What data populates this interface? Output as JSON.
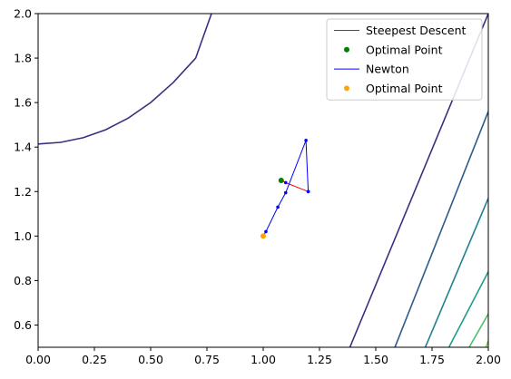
{
  "chart_data": {
    "type": "line",
    "xlim": [
      0.0,
      2.0
    ],
    "ylim": [
      0.5,
      2.0
    ],
    "x_ticks": [
      "0.00",
      "0.25",
      "0.50",
      "0.75",
      "1.00",
      "1.25",
      "1.50",
      "1.75",
      "2.00"
    ],
    "y_ticks": [
      "0.6",
      "0.8",
      "1.0",
      "1.2",
      "1.4",
      "1.6",
      "1.8",
      "2.0"
    ],
    "grid": false,
    "legend_position": "top-right",
    "contour_levels": [
      {
        "color": "#3b2f7f",
        "points": [
          [
            0.0,
            1.414
          ],
          [
            0.1,
            1.421
          ],
          [
            0.2,
            1.442
          ],
          [
            0.3,
            1.478
          ],
          [
            0.4,
            1.53
          ],
          [
            0.5,
            1.6
          ],
          [
            0.6,
            1.69
          ],
          [
            0.7,
            1.8
          ],
          [
            0.77,
            2.0
          ]
        ]
      },
      {
        "color": "#3b2f7f",
        "points": [
          [
            1.385,
            0.5
          ],
          [
            2.0,
            2.0
          ]
        ]
      },
      {
        "color": "#2e5a8c",
        "points": [
          [
            1.585,
            0.5
          ],
          [
            2.0,
            1.56
          ]
        ]
      },
      {
        "color": "#22808d",
        "points": [
          [
            1.72,
            0.5
          ],
          [
            2.0,
            1.17
          ]
        ]
      },
      {
        "color": "#1f9e89",
        "points": [
          [
            1.825,
            0.5
          ],
          [
            2.0,
            0.84
          ]
        ]
      },
      {
        "color": "#4ac16d",
        "points": [
          [
            1.915,
            0.5
          ],
          [
            2.0,
            0.65
          ]
        ]
      },
      {
        "color": "#7ad151",
        "points": [
          [
            1.99,
            0.5
          ],
          [
            2.0,
            0.53
          ]
        ]
      }
    ],
    "series": [
      {
        "name": "Steepest Descent",
        "color": "#ff0000",
        "marker_color": "#0000ff",
        "points": [
          [
            1.2,
            1.2
          ],
          [
            1.1,
            1.24
          ],
          [
            1.08,
            1.25
          ]
        ]
      },
      {
        "name": "Newton",
        "color": "#0000ff",
        "marker_color": "#0000ff",
        "points": [
          [
            1.2,
            1.2
          ],
          [
            1.19,
            1.43
          ],
          [
            1.1,
            1.195
          ],
          [
            1.065,
            1.13
          ],
          [
            1.012,
            1.02
          ],
          [
            1.002,
            1.003
          ]
        ]
      }
    ],
    "optimal_points": [
      {
        "name": "Optimal Point",
        "color": "#008000",
        "point": [
          1.08,
          1.25
        ]
      },
      {
        "name": "Optimal Point",
        "color": "#ffa500",
        "point": [
          1.0,
          1.0
        ]
      }
    ],
    "legend": [
      {
        "label": "Steepest Descent",
        "kind": "line",
        "color": "#ff0000"
      },
      {
        "label": "Optimal Point",
        "kind": "marker",
        "color": "#008000"
      },
      {
        "label": "Newton",
        "kind": "line",
        "color": "#0000ff"
      },
      {
        "label": "Optimal Point",
        "kind": "marker",
        "color": "#ffa500"
      }
    ]
  }
}
